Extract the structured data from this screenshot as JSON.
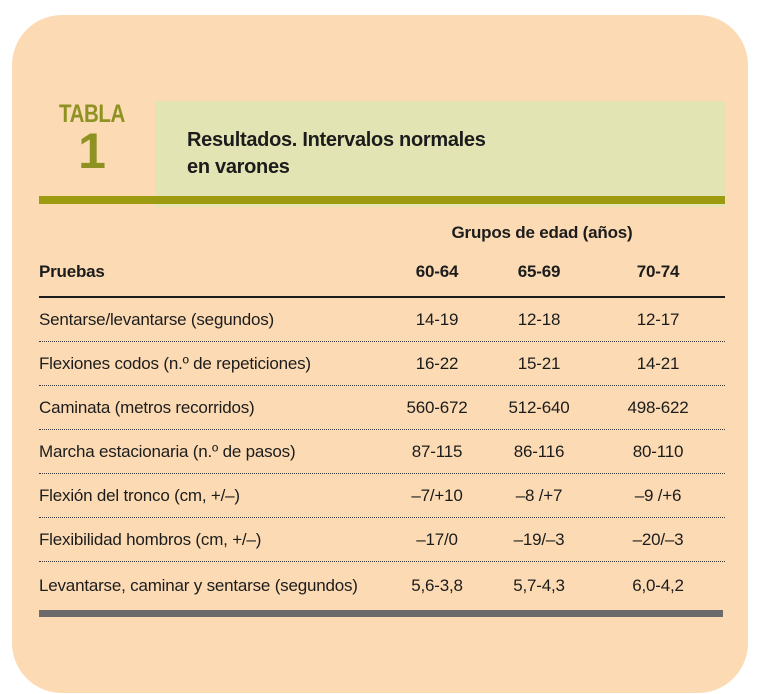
{
  "table_label": {
    "word": "TABLA",
    "number": "1"
  },
  "title": {
    "line1": "Resultados. Intervalos normales",
    "line2": "en varones"
  },
  "group_header": "Grupos de edad (años)",
  "columns": {
    "tests": "Pruebas",
    "age_groups": [
      "60-64",
      "65-69",
      "70-74"
    ]
  },
  "rows": [
    {
      "label": "Sentarse/levantarse (segundos)",
      "values": [
        "14-19",
        "12-18",
        "12-17"
      ]
    },
    {
      "label": "Flexiones codos (n.º de repeticiones)",
      "values": [
        "16-22",
        "15-21",
        "14-21"
      ]
    },
    {
      "label": "Caminata (metros recorridos)",
      "values": [
        "560-672",
        "512-640",
        "498-622"
      ]
    },
    {
      "label": "Marcha estacionaria (n.º de pasos)",
      "values": [
        "87-115",
        "86-116",
        "80-110"
      ]
    },
    {
      "label": "Flexión del tronco (cm, +/–)",
      "values": [
        "–7/+10",
        "–8 /+7",
        "–9 /+6"
      ]
    },
    {
      "label": "Flexibilidad hombros (cm, +/–)",
      "values": [
        "–17/0",
        "–19/–3",
        "–20/–3"
      ]
    },
    {
      "label": "Levantarse, caminar y sentarse (segundos)",
      "values": [
        "5,6-3,8",
        "5,7-4,3",
        "6,0-4,2"
      ]
    }
  ],
  "colors": {
    "card_background": "#FCDBB4",
    "title_box_background": "#E3E4B3",
    "olive_accent": "#9C9A0E",
    "tabla_label": "#8E9222",
    "text": "#1C1C1C",
    "bottom_bar": "#6B6B6B",
    "page_background": "#FFFFFF"
  }
}
